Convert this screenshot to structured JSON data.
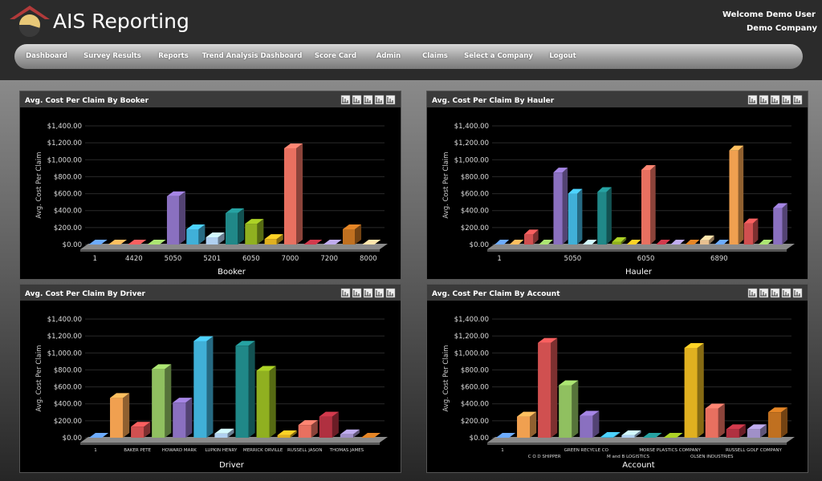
{
  "header": {
    "title": "AIS Reporting",
    "welcome": "Welcome Demo User",
    "company": "Demo Company"
  },
  "nav": [
    "Dashboard",
    "Survey Results",
    "Reports",
    "Trend Analysis Dashboard",
    "Score Card",
    "Admin",
    "Claims",
    "Select a Company",
    "Logout"
  ],
  "chart_data": [
    {
      "type": "bar",
      "title": "Avg. Cost Per Claim By Booker",
      "y_label": "Avg. Cost Per Claim",
      "x_label": "Booker",
      "categories": [
        "1",
        null,
        "4420",
        null,
        "5050",
        null,
        "5201",
        null,
        "6050",
        null,
        "7000",
        null,
        "7200",
        null,
        "8000"
      ],
      "values": [
        0,
        0,
        0,
        0,
        570,
        180,
        85,
        370,
        245,
        65,
        1135,
        0,
        0,
        180,
        0
      ],
      "colors": [
        "#5b8fd6",
        "#f0a050",
        "#d05050",
        "#90c060",
        "#8a70c0",
        "#40b0d8",
        "#b0d0f0",
        "#208888",
        "#90b020",
        "#e0b020",
        "#e87060",
        "#b03040",
        "#a090c8",
        "#c07020",
        "#e8c090"
      ],
      "ylim": [
        0,
        1400
      ],
      "yticks": [
        {
          "value": 0,
          "label": "$0.00"
        },
        {
          "value": 200,
          "label": "$200.00"
        },
        {
          "value": 400,
          "label": "$400.00"
        },
        {
          "value": 600,
          "label": "$600.00"
        },
        {
          "value": 800,
          "label": "$800.00"
        },
        {
          "value": 1000,
          "label": "$1,000.00"
        },
        {
          "value": 1200,
          "label": "$1,200.00"
        },
        {
          "value": 1400,
          "label": "$1,400.00"
        }
      ],
      "grid": true
    },
    {
      "type": "bar",
      "title": "Avg. Cost Per Claim By Hauler",
      "y_label": "Avg. Cost Per Claim",
      "x_label": "Hauler",
      "categories": [
        "1",
        null,
        null,
        null,
        null,
        "5050",
        null,
        null,
        null,
        null,
        "6050",
        null,
        null,
        null,
        null,
        "6890",
        null,
        null,
        null,
        null
      ],
      "values": [
        0,
        0,
        120,
        0,
        850,
        600,
        0,
        620,
        30,
        0,
        880,
        0,
        0,
        0,
        50,
        0,
        1110,
        250,
        0,
        430
      ],
      "colors": [
        "#5b8fd6",
        "#f0a050",
        "#d05050",
        "#90c060",
        "#8a70c0",
        "#40b0d8",
        "#b0d0f0",
        "#208888",
        "#90b020",
        "#e0b020",
        "#e87060",
        "#b03040",
        "#a090c8",
        "#c07020",
        "#e8c090",
        "#5b8fd6",
        "#f0a050",
        "#d05050",
        "#90c060",
        "#8a70c0"
      ],
      "ylim": [
        0,
        1400
      ],
      "yticks": [
        {
          "value": 0,
          "label": "$0.00"
        },
        {
          "value": 200,
          "label": "$200.00"
        },
        {
          "value": 400,
          "label": "$400.00"
        },
        {
          "value": 600,
          "label": "$600.00"
        },
        {
          "value": 800,
          "label": "$800.00"
        },
        {
          "value": 1000,
          "label": "$1,000.00"
        },
        {
          "value": 1200,
          "label": "$1,200.00"
        },
        {
          "value": 1400,
          "label": "$1,400.00"
        }
      ],
      "grid": true
    },
    {
      "type": "bar",
      "title": "Avg. Cost Per Claim By Driver",
      "y_label": "Avg. Cost Per Claim",
      "x_label": "Driver",
      "categories": [
        "1",
        null,
        "BAKER PETE",
        null,
        "HOWARD MARK",
        null,
        "LUPKIN HENRY",
        null,
        "MERRICK ORVILLE",
        null,
        "RUSSELL JASON",
        null,
        "THOMAS JAMES",
        null
      ],
      "values": [
        0,
        470,
        130,
        810,
        415,
        1140,
        50,
        1085,
        790,
        30,
        150,
        250,
        40,
        0
      ],
      "colors": [
        "#5b8fd6",
        "#f0a050",
        "#d05050",
        "#90c060",
        "#8a70c0",
        "#40b0d8",
        "#b0d0f0",
        "#208888",
        "#90b020",
        "#e0b020",
        "#e87060",
        "#b03040",
        "#a090c8",
        "#c07020"
      ],
      "ylim": [
        0,
        1400
      ],
      "yticks": [
        {
          "value": 0,
          "label": "$0.00"
        },
        {
          "value": 200,
          "label": "$200.00"
        },
        {
          "value": 400,
          "label": "$400.00"
        },
        {
          "value": 600,
          "label": "$600.00"
        },
        {
          "value": 800,
          "label": "$800.00"
        },
        {
          "value": 1000,
          "label": "$1,000.00"
        },
        {
          "value": 1200,
          "label": "$1,200.00"
        },
        {
          "value": 1400,
          "label": "$1,400.00"
        }
      ],
      "grid": true
    },
    {
      "type": "bar",
      "title": "Avg. Cost Per Claim By Account",
      "y_label": "Avg. Cost Per Claim",
      "x_label": "Account",
      "categories": [
        "1",
        null,
        "C O D SHIPPER",
        null,
        "GREEN RECYCLE CO",
        null,
        "M and B LOGISTICS",
        null,
        "MORSE PLASTICS COMPANY",
        null,
        "OLSEN INDUSTRIES",
        null,
        "RUSSELL GOLF COMPANY",
        null
      ],
      "values": [
        0,
        250,
        1120,
        620,
        260,
        10,
        30,
        0,
        0,
        1060,
        345,
        100,
        100,
        300
      ],
      "colors": [
        "#5b8fd6",
        "#f0a050",
        "#d05050",
        "#90c060",
        "#8a70c0",
        "#40b0d8",
        "#b0d0f0",
        "#208888",
        "#90b020",
        "#e0b020",
        "#e87060",
        "#b03040",
        "#a090c8",
        "#c07020"
      ],
      "ylim": [
        0,
        1400
      ],
      "yticks": [
        {
          "value": 0,
          "label": "$0.00"
        },
        {
          "value": 200,
          "label": "$200.00"
        },
        {
          "value": 400,
          "label": "$400.00"
        },
        {
          "value": 600,
          "label": "$600.00"
        },
        {
          "value": 800,
          "label": "$800.00"
        },
        {
          "value": 1000,
          "label": "$1,000.00"
        },
        {
          "value": 1200,
          "label": "$1,200.00"
        },
        {
          "value": 1400,
          "label": "$1,400.00"
        }
      ],
      "grid": true
    }
  ]
}
